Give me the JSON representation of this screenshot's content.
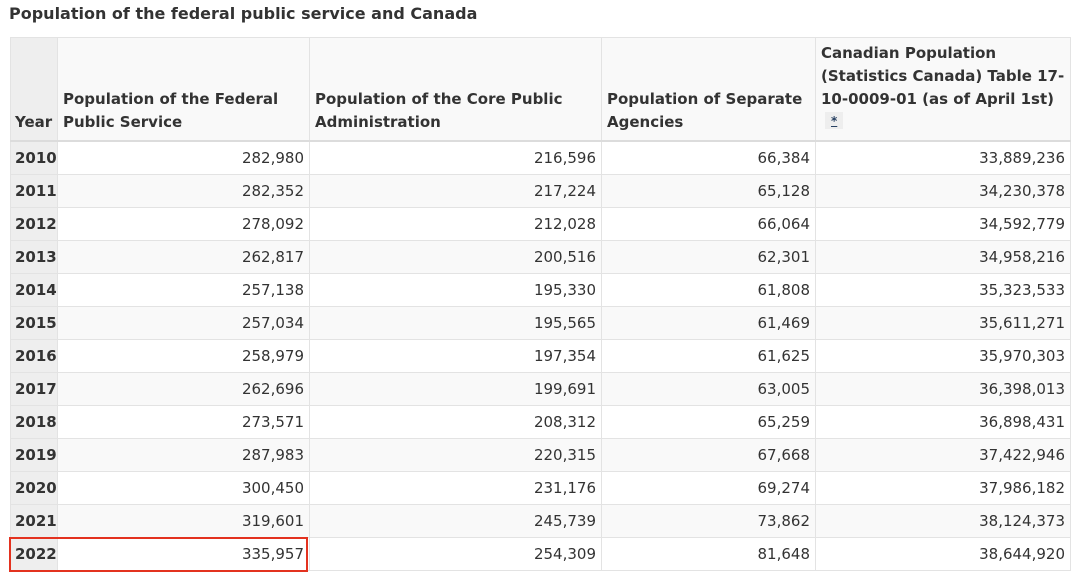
{
  "caption": "Population of the federal public service and Canada",
  "headers": {
    "year": "Year",
    "federal_public_service": "Population of the Federal Public Service",
    "core_public_administration": "Population of the Core Public Administration",
    "separate_agencies": "Population of Separate Agencies",
    "canadian_population": "Canadian Population (Statistics Canada) Table 17-10-0009-01 (as of April 1st)",
    "footnote_marker": "*"
  },
  "rows": [
    {
      "year": "2010",
      "fps": "282,980",
      "cpa": "216,596",
      "sep": "66,384",
      "can": "33,889,236"
    },
    {
      "year": "2011",
      "fps": "282,352",
      "cpa": "217,224",
      "sep": "65,128",
      "can": "34,230,378"
    },
    {
      "year": "2012",
      "fps": "278,092",
      "cpa": "212,028",
      "sep": "66,064",
      "can": "34,592,779"
    },
    {
      "year": "2013",
      "fps": "262,817",
      "cpa": "200,516",
      "sep": "62,301",
      "can": "34,958,216"
    },
    {
      "year": "2014",
      "fps": "257,138",
      "cpa": "195,330",
      "sep": "61,808",
      "can": "35,323,533"
    },
    {
      "year": "2015",
      "fps": "257,034",
      "cpa": "195,565",
      "sep": "61,469",
      "can": "35,611,271"
    },
    {
      "year": "2016",
      "fps": "258,979",
      "cpa": "197,354",
      "sep": "61,625",
      "can": "35,970,303"
    },
    {
      "year": "2017",
      "fps": "262,696",
      "cpa": "199,691",
      "sep": "63,005",
      "can": "36,398,013"
    },
    {
      "year": "2018",
      "fps": "273,571",
      "cpa": "208,312",
      "sep": "65,259",
      "can": "36,898,431"
    },
    {
      "year": "2019",
      "fps": "287,983",
      "cpa": "220,315",
      "sep": "67,668",
      "can": "37,422,946"
    },
    {
      "year": "2020",
      "fps": "300,450",
      "cpa": "231,176",
      "sep": "69,274",
      "can": "37,986,182"
    },
    {
      "year": "2021",
      "fps": "319,601",
      "cpa": "245,739",
      "sep": "73,862",
      "can": "38,124,373"
    },
    {
      "year": "2022",
      "fps": "335,957",
      "cpa": "254,309",
      "sep": "81,648",
      "can": "38,644,920"
    }
  ],
  "highlight": {
    "row_year": "2022",
    "columns": [
      "year",
      "federal_public_service"
    ],
    "color": "#e3321f"
  },
  "colors": {
    "header_bg": "#f9f9f9",
    "year_col_bg": "#eeeeee",
    "border": "#e3e3e3",
    "text": "#333333",
    "link": "#284162"
  }
}
